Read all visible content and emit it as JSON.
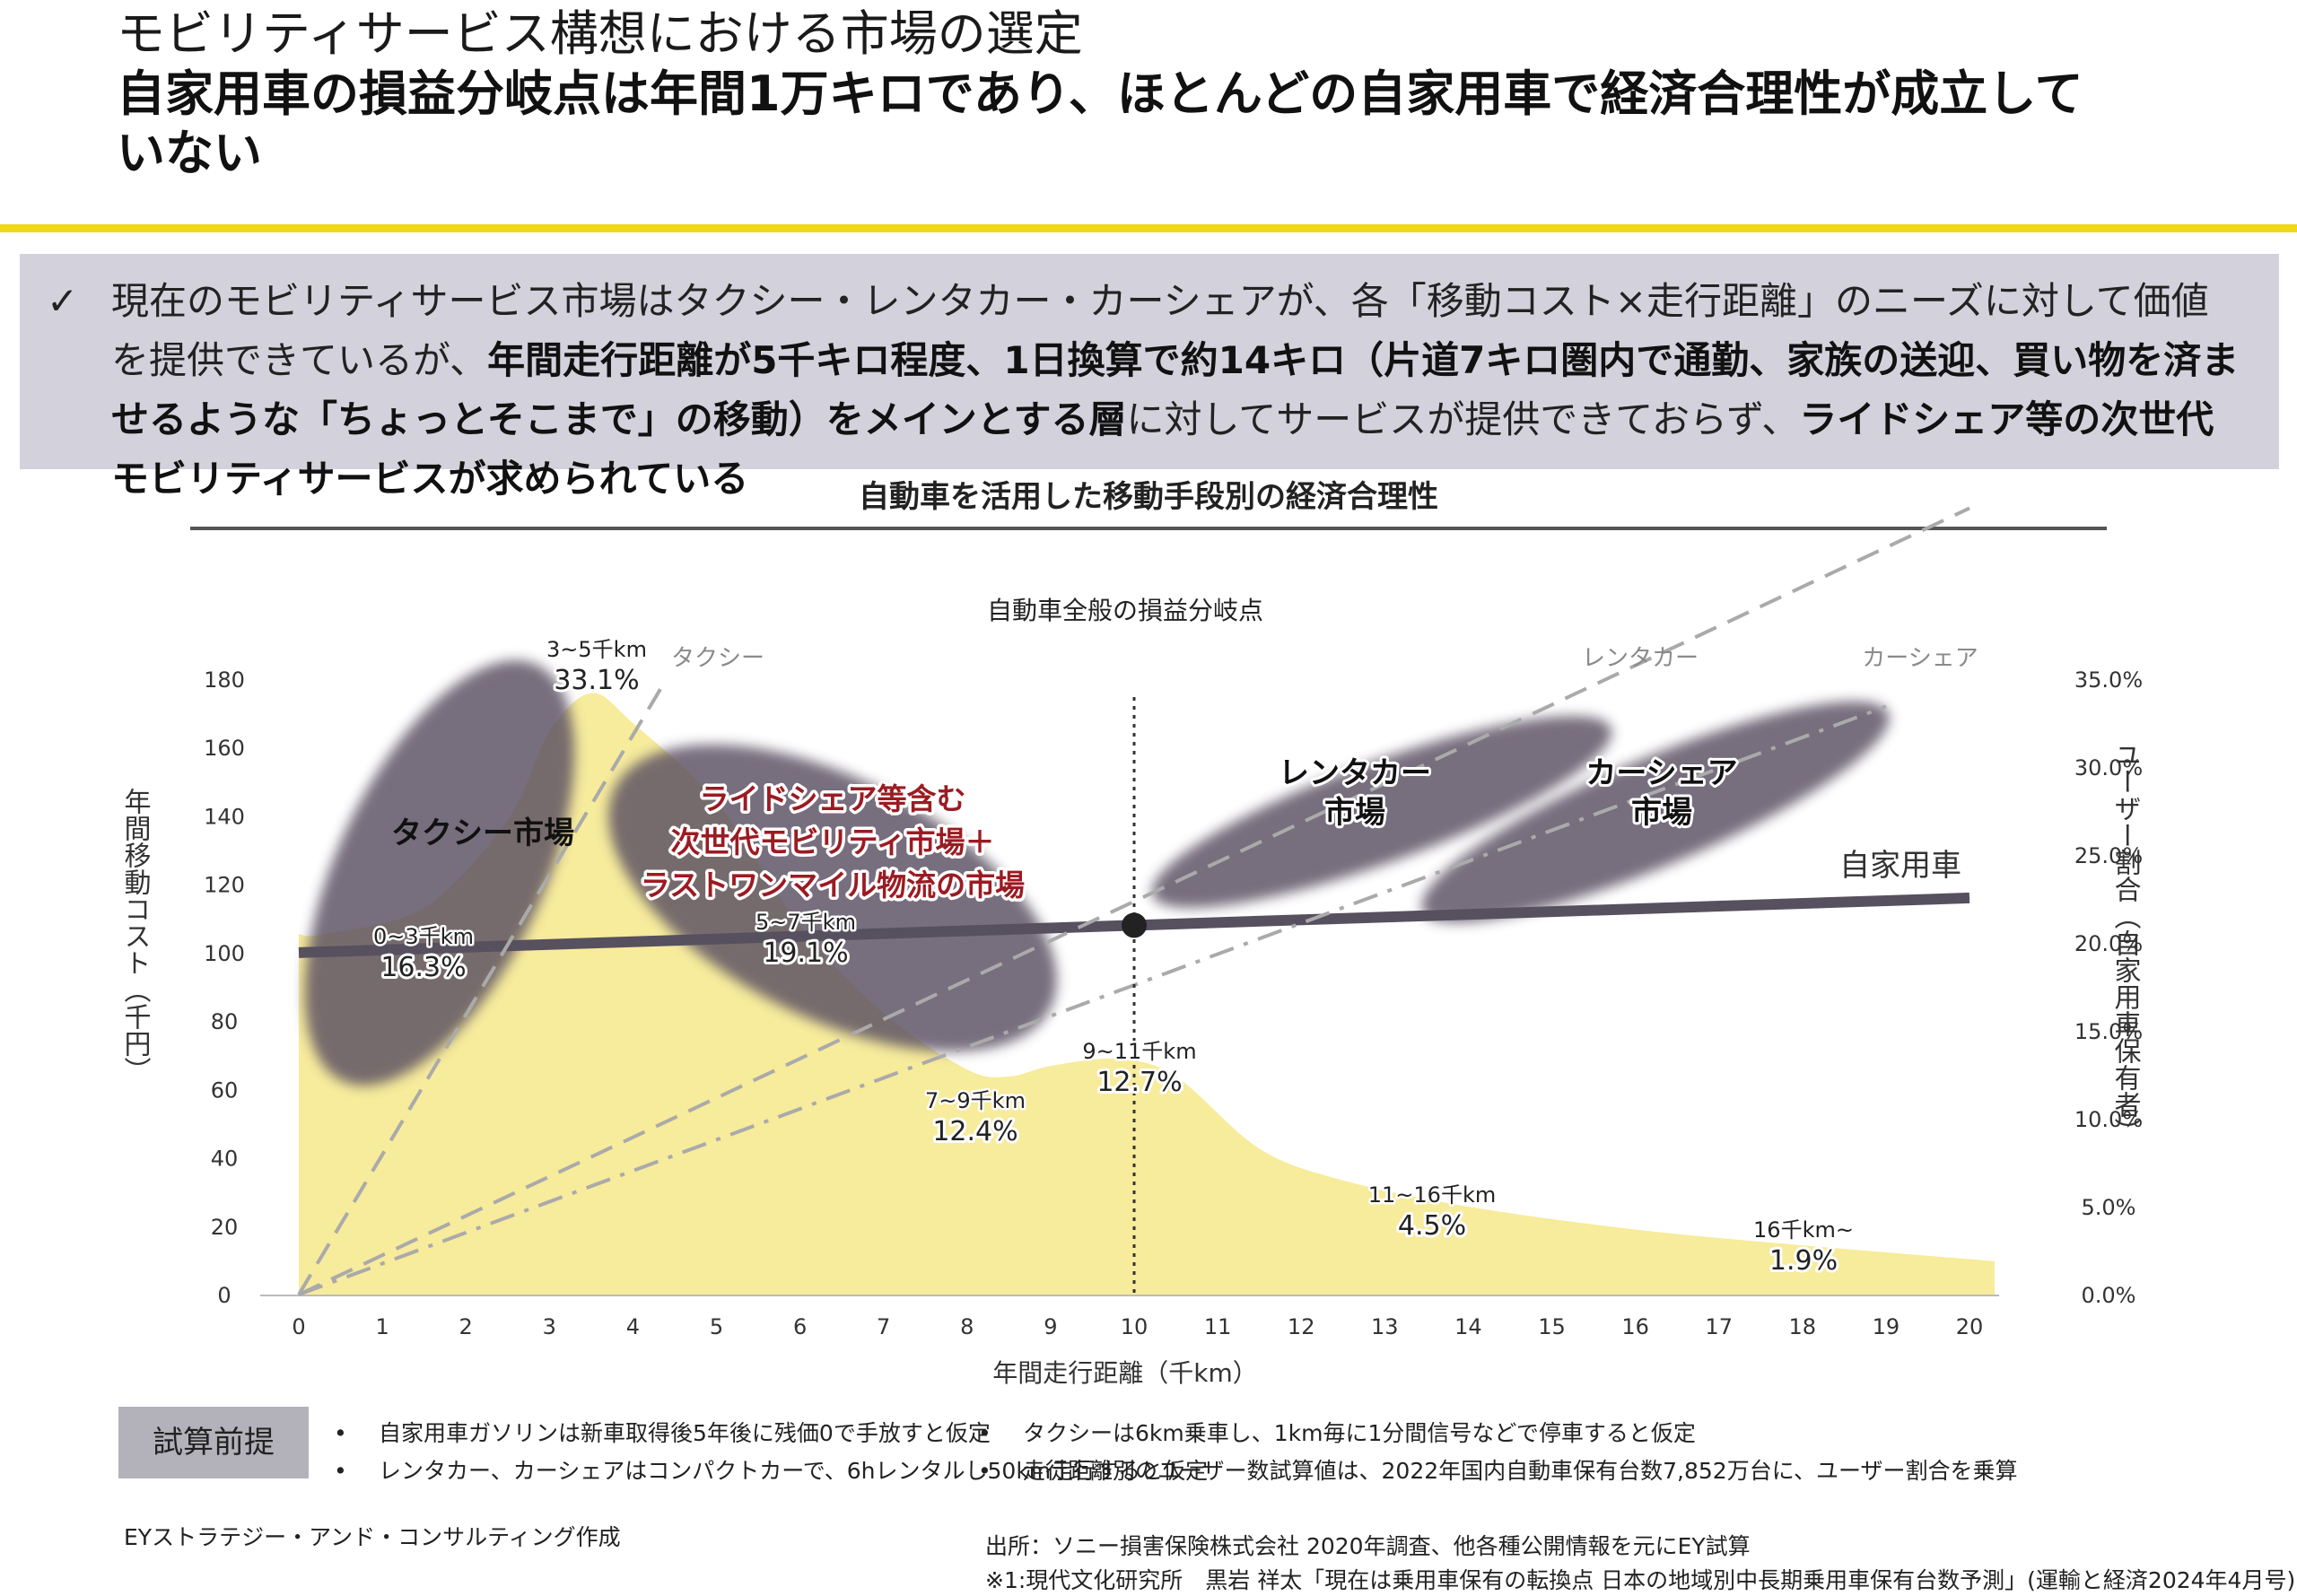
{
  "header": {
    "title": "モビリティサービス構想における市場の選定",
    "headline_line1": "自家用車の損益分岐点は年間1万キロであり、ほとんどの自家用車で経済合理性が成立して",
    "headline_line2": "いない"
  },
  "summary": {
    "check": "✓",
    "s1": "現在のモビリティサービス市場はタクシー・レンタカー・カーシェアが、各「移動コスト×走行距離」のニーズに対して価値を提供できているが、",
    "s1b": "年間走行",
    "s2b": "距離が5千キロ程度、1日換算で約14キロ（片道7キロ圏内で通勤、家族の送迎、買い物を済ませるような「ちょっとそこまで」の移動）をメイン",
    "s3b": "とする層",
    "s3": "に対してサービスが提供できておらず、",
    "s3c": "ライドシェア等の次世代モビリティサービスが求められている"
  },
  "chart_title": "自動車を活用した移動手段別の経済合理性",
  "chart_data": {
    "type": "area+line",
    "annotation_breakeven": "自動車全般の損益分岐点",
    "xlabel": "年間走行距離（千km）",
    "ylabel_left": "年間移動コスト（千円）",
    "ylabel_right": "ユーザー割合（自家用車保有者）",
    "x_ticks": [
      0,
      1,
      2,
      3,
      4,
      5,
      6,
      7,
      8,
      9,
      10,
      11,
      12,
      13,
      14,
      15,
      16,
      17,
      18,
      19,
      20
    ],
    "ylim_left": [
      0,
      180
    ],
    "y_ticks_left": [
      0,
      20,
      40,
      60,
      80,
      100,
      120,
      140,
      160,
      180
    ],
    "ylim_right": [
      0,
      35
    ],
    "y_ticks_right": [
      "0.0%",
      "5.0%",
      "10.0%",
      "15.0%",
      "20.0%",
      "25.0%",
      "30.0%",
      "35.0%"
    ],
    "breakeven_x": 10,
    "breakeven_y": 108,
    "user_share_area": {
      "name": "ユーザー割合",
      "color": "#f7eb9c",
      "points": [
        [
          0,
          20.5
        ],
        [
          0.3,
          20.5
        ],
        [
          1.5,
          22
        ],
        [
          2.5,
          27
        ],
        [
          3,
          32
        ],
        [
          3.5,
          34.2
        ],
        [
          4,
          32.5
        ],
        [
          5,
          28
        ],
        [
          6,
          21
        ],
        [
          7,
          16
        ],
        [
          8,
          12.8
        ],
        [
          8.5,
          12.4
        ],
        [
          9,
          13
        ],
        [
          9.8,
          13.4
        ],
        [
          10.5,
          12.4
        ],
        [
          11.5,
          8.3
        ],
        [
          12.5,
          6.5
        ],
        [
          14,
          5
        ],
        [
          16,
          3.7
        ],
        [
          18,
          2.8
        ],
        [
          20.3,
          1.9
        ]
      ]
    },
    "series": [
      {
        "name": "自家用車",
        "style": "solid",
        "color": "#57505f",
        "points": [
          [
            0,
            100
          ],
          [
            20,
            116
          ]
        ]
      },
      {
        "name": "タクシー",
        "style": "dash",
        "color": "#aaaaaa",
        "points": [
          [
            0,
            0
          ],
          [
            4.4,
            180
          ]
        ]
      },
      {
        "name": "レンタカー",
        "style": "dash",
        "color": "#aaaaaa",
        "points": [
          [
            0,
            0
          ],
          [
            20,
            230
          ]
        ]
      },
      {
        "name": "カーシェア",
        "style": "dashdot",
        "color": "#aaaaaa",
        "points": [
          [
            0,
            0
          ],
          [
            19,
            172
          ]
        ]
      }
    ],
    "line_labels": {
      "taxi": "タクシー",
      "rental": "レンタカー",
      "carshare": "カーシェア",
      "private": "自家用車"
    },
    "bands": [
      {
        "range": "0~3千km",
        "share": "16.3%"
      },
      {
        "range": "3~5千km",
        "share": "33.1%"
      },
      {
        "range": "5~7千km",
        "share": "19.1%"
      },
      {
        "range": "7~9千km",
        "share": "12.4%"
      },
      {
        "range": "9~11千km",
        "share": "12.7%"
      },
      {
        "range": "11~16千km",
        "share": "4.5%"
      },
      {
        "range": "16千km~",
        "share": "1.9%"
      }
    ],
    "markets": {
      "taxi": "タクシー市場",
      "rideshare_1": "ライドシェア等含む",
      "rideshare_2": "次世代モビリティ市場＋",
      "rideshare_3": "ラストワンマイル物流の市場",
      "rental_1": "レンタカー",
      "rental_2": "市場",
      "carshare_1": "カーシェア",
      "carshare_2": "市場"
    },
    "colors": {
      "market_blob": "#5a5062",
      "rideshare_text": "#9b1b22",
      "area": "#f7eb9c"
    }
  },
  "premises": {
    "label": "試算前提",
    "bullet": "•",
    "p1": "自家用車ガソリンは新車取得後5年後に残価0で手放すと仮定",
    "p2": "レンタカー、カーシェアはコンパクトカーで、6hレンタルし50km走行すると仮定",
    "p3": "タクシーは6km乗車し、1km毎に1分間信号などで停車すると仮定",
    "p4": "走行距離別のユーザー数試算値は、2022年国内自動車保有台数7,852万台に、ユーザー割合を乗算"
  },
  "footer": {
    "author": "EYストラテジー・アンド・コンサルティング作成",
    "source": "出所：ソニー損害保険株式会社 2020年調査、他各種公開情報を元にEY試算",
    "note": "※1:現代文化研究所　黒岩 祥太「現在は乗用車保有の転換点 日本の地域別中長期乗用車保有台数予測」(運輸と経済2024年4月号)"
  }
}
